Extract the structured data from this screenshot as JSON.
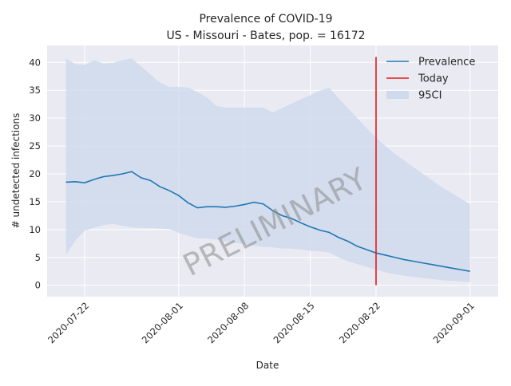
{
  "chart_data": {
    "type": "line",
    "title": "Prevalence of COVID-19",
    "subtitle": "US - Missouri - Bates, pop. = 16172",
    "x_label": "Date",
    "y_label": "# undetected infections",
    "watermark": "PRELIMINARY",
    "x": [
      "2020-07-20",
      "2020-07-21",
      "2020-07-22",
      "2020-07-23",
      "2020-07-24",
      "2020-07-25",
      "2020-07-26",
      "2020-07-27",
      "2020-07-28",
      "2020-07-29",
      "2020-07-30",
      "2020-07-31",
      "2020-08-01",
      "2020-08-02",
      "2020-08-03",
      "2020-08-04",
      "2020-08-05",
      "2020-08-06",
      "2020-08-07",
      "2020-08-08",
      "2020-08-09",
      "2020-08-10",
      "2020-08-11",
      "2020-08-12",
      "2020-08-13",
      "2020-08-14",
      "2020-08-15",
      "2020-08-16",
      "2020-08-17",
      "2020-08-18",
      "2020-08-19",
      "2020-08-20",
      "2020-08-21",
      "2020-08-22",
      "2020-08-23",
      "2020-08-24",
      "2020-08-25",
      "2020-08-26",
      "2020-08-27",
      "2020-08-28",
      "2020-08-29",
      "2020-08-30",
      "2020-08-31",
      "2020-09-01"
    ],
    "series": [
      {
        "name": "Prevalence",
        "color": "#1f77b4",
        "values": [
          18.5,
          18.6,
          18.4,
          19.0,
          19.5,
          19.7,
          20.0,
          20.4,
          19.3,
          18.8,
          17.7,
          17.0,
          16.1,
          14.8,
          13.9,
          14.1,
          14.1,
          14.0,
          14.2,
          14.5,
          14.9,
          14.6,
          13.4,
          12.5,
          12.0,
          11.2,
          10.5,
          9.9,
          9.5,
          8.6,
          7.9,
          7.0,
          6.4,
          5.8,
          5.4,
          5.0,
          4.6,
          4.3,
          4.0,
          3.7,
          3.4,
          3.1,
          2.8,
          2.5
        ]
      }
    ],
    "today": {
      "name": "Today",
      "color": "#e8161b",
      "x": "2020-08-22",
      "ylim": [
        0,
        41
      ]
    },
    "band": {
      "name": "95CI",
      "color": "#cfdbec",
      "upper": [
        40.7,
        39.7,
        39.6,
        40.4,
        39.8,
        39.9,
        40.4,
        40.7,
        39.3,
        37.8,
        36.4,
        35.6,
        35.6,
        35.5,
        34.7,
        33.7,
        32.2,
        31.9,
        31.9,
        31.9,
        31.9,
        31.9,
        31.0,
        31.8,
        32.6,
        33.4,
        34.1,
        34.9,
        35.5,
        33.6,
        31.8,
        30.0,
        28.2,
        26.5,
        25.0,
        23.6,
        22.4,
        21.2,
        20.0,
        18.8,
        17.6,
        16.6,
        15.6,
        14.5
      ],
      "lower": [
        5.5,
        8.0,
        9.8,
        10.3,
        10.8,
        11.0,
        10.7,
        10.4,
        10.3,
        10.3,
        10.2,
        10.1,
        9.4,
        8.9,
        8.4,
        8.4,
        8.2,
        7.9,
        7.6,
        7.4,
        7.1,
        6.9,
        6.8,
        6.6,
        6.6,
        6.4,
        6.2,
        6.1,
        5.9,
        5.0,
        4.3,
        3.8,
        3.3,
        2.8,
        2.3,
        2.0,
        1.7,
        1.5,
        1.3,
        1.1,
        0.9,
        0.8,
        0.7,
        0.6
      ]
    },
    "xlim": [
      "2020-07-18",
      "2020-09-04"
    ],
    "xticks": [
      "2020-07-22",
      "2020-08-01",
      "2020-08-08",
      "2020-08-15",
      "2020-08-22",
      "2020-09-01"
    ],
    "ylim": [
      -2.05,
      43.05
    ],
    "yticks": [
      0,
      5,
      10,
      15,
      20,
      25,
      30,
      35,
      40
    ],
    "grid": true,
    "legend": "upper right"
  }
}
